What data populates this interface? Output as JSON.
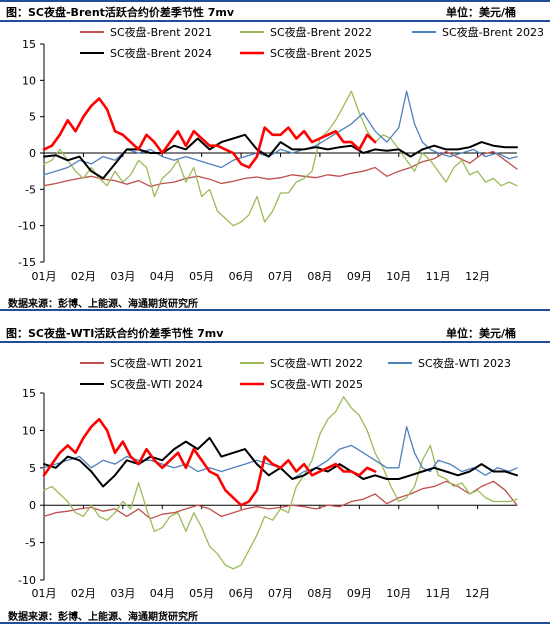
{
  "chart_data": [
    {
      "type": "line",
      "title": "图：SC夜盘-Brent活跃合约价差季节性 7mv",
      "unit": "单位：美元/桶",
      "source": "数据来源：彭博、上能源、海通期货研究所",
      "xlabel": "",
      "ylabel": "",
      "x_ticks": [
        "01月",
        "02月",
        "03月",
        "04月",
        "05月",
        "06月",
        "07月",
        "08月",
        "09月",
        "10月",
        "11月",
        "12月"
      ],
      "ylim": [
        -15,
        15
      ],
      "y_ticks": [
        15,
        10,
        5,
        0,
        -5,
        -10,
        -15
      ],
      "grid": false,
      "legend_position": "top",
      "series": [
        {
          "name": "SC夜盘-Brent 2021",
          "color": "#c0504d",
          "width": 1.3,
          "x": [
            1,
            1.3,
            1.6,
            1.9,
            2.2,
            2.5,
            2.8,
            3.1,
            3.4,
            3.7,
            4.0,
            4.3,
            4.6,
            4.9,
            5.2,
            5.5,
            5.8,
            6.1,
            6.4,
            6.7,
            7.0,
            7.3,
            7.6,
            7.9,
            8.2,
            8.5,
            8.8,
            9.1,
            9.4,
            9.7,
            10.0,
            10.3,
            10.6,
            10.9,
            11.2,
            11.5,
            11.8,
            12.1,
            12.4,
            12.7,
            13.0
          ],
          "values": [
            -4.5,
            -4.2,
            -3.8,
            -3.5,
            -3.2,
            -3.6,
            -3.8,
            -4.3,
            -3.8,
            -4.6,
            -4.2,
            -4.0,
            -3.5,
            -3.2,
            -3.6,
            -4.2,
            -3.9,
            -3.5,
            -3.3,
            -3.6,
            -3.4,
            -3.0,
            -3.2,
            -3.4,
            -3.0,
            -3.2,
            -2.8,
            -2.5,
            -2.0,
            -3.2,
            -2.5,
            -2.0,
            -1.2,
            -0.8,
            0.2,
            -0.6,
            -1.4,
            -0.2,
            0.2,
            -1.0,
            -2.2
          ]
        },
        {
          "name": "SC夜盘-Brent 2022",
          "color": "#9bbb59",
          "width": 1.3,
          "x": [
            1,
            1.2,
            1.4,
            1.6,
            1.8,
            2.0,
            2.2,
            2.4,
            2.6,
            2.8,
            3.0,
            3.2,
            3.4,
            3.6,
            3.8,
            4.0,
            4.2,
            4.4,
            4.6,
            4.8,
            5.0,
            5.2,
            5.4,
            5.6,
            5.8,
            6.0,
            6.2,
            6.4,
            6.6,
            6.8,
            7.0,
            7.2,
            7.4,
            7.6,
            7.8,
            8.0,
            8.2,
            8.4,
            8.6,
            8.8,
            9.0,
            9.2,
            9.4,
            9.6,
            9.8,
            10.0,
            10.2,
            10.4,
            10.6,
            10.8,
            11.0,
            11.2,
            11.4,
            11.6,
            11.8,
            12.0,
            12.2,
            12.4,
            12.6,
            12.8,
            13.0
          ],
          "values": [
            -1.5,
            -1.0,
            0.5,
            -1.0,
            -2.5,
            -3.5,
            -2.0,
            -3.5,
            -4.5,
            -2.5,
            -4.0,
            -3.0,
            -1.0,
            -2.0,
            -6.0,
            -3.5,
            -2.5,
            -1.0,
            -4.0,
            -2.0,
            -6.0,
            -5.0,
            -8.0,
            -9.0,
            -10.0,
            -9.5,
            -8.5,
            -6.0,
            -9.5,
            -8.0,
            -5.5,
            -5.5,
            -4.0,
            -3.5,
            -2.5,
            2.0,
            3.0,
            4.5,
            6.5,
            8.5,
            5.5,
            3.0,
            1.5,
            2.5,
            2.0,
            0.5,
            -1.0,
            -2.5,
            0.0,
            -1.0,
            -2.5,
            -4.0,
            -2.0,
            -1.0,
            -3.0,
            -2.5,
            -4.0,
            -3.5,
            -4.5,
            -4.0,
            -4.5
          ]
        },
        {
          "name": "SC夜盘-Brent 2023",
          "color": "#4f81bd",
          "width": 1.3,
          "x": [
            1,
            1.3,
            1.6,
            1.9,
            2.2,
            2.5,
            2.8,
            3.1,
            3.4,
            3.7,
            4.0,
            4.3,
            4.6,
            4.9,
            5.2,
            5.5,
            5.8,
            6.1,
            6.4,
            6.7,
            7.0,
            7.3,
            7.6,
            7.9,
            8.2,
            8.5,
            8.8,
            9.1,
            9.4,
            9.7,
            10.0,
            10.2,
            10.4,
            10.6,
            10.8,
            11.0,
            11.3,
            11.6,
            11.9,
            12.2,
            12.5,
            12.8,
            13.0
          ],
          "values": [
            -3.0,
            -2.5,
            -2.0,
            -1.0,
            -1.5,
            -0.5,
            -1.0,
            0.5,
            0.0,
            0.5,
            -0.5,
            -1.0,
            -0.5,
            -1.0,
            -1.5,
            -2.0,
            -1.0,
            -0.5,
            0.0,
            -0.5,
            0.5,
            0.0,
            0.5,
            1.0,
            2.0,
            3.0,
            4.0,
            5.5,
            3.0,
            1.5,
            3.5,
            8.5,
            4.0,
            1.5,
            0.5,
            0.0,
            -0.5,
            0.0,
            0.5,
            -0.5,
            0.0,
            -0.8,
            -0.5
          ]
        },
        {
          "name": "SC夜盘-Brent 2024",
          "color": "#000000",
          "width": 2.0,
          "x": [
            1,
            1.3,
            1.6,
            1.9,
            2.2,
            2.5,
            2.8,
            3.1,
            3.4,
            3.7,
            4.0,
            4.3,
            4.6,
            4.9,
            5.2,
            5.5,
            5.8,
            6.1,
            6.4,
            6.7,
            7.0,
            7.3,
            7.6,
            7.9,
            8.2,
            8.5,
            8.8,
            9.1,
            9.4,
            9.7,
            10.0,
            10.3,
            10.6,
            10.9,
            11.2,
            11.5,
            11.8,
            12.1,
            12.4,
            12.7,
            13.0
          ],
          "values": [
            -0.5,
            -0.3,
            -1.0,
            -0.5,
            -2.5,
            -3.5,
            -1.5,
            0.5,
            0.5,
            0.0,
            0.0,
            1.0,
            0.5,
            2.0,
            0.5,
            1.5,
            2.0,
            2.5,
            0.5,
            -0.5,
            1.5,
            0.5,
            0.5,
            0.8,
            0.5,
            0.8,
            1.0,
            0.0,
            0.5,
            0.3,
            0.5,
            -0.5,
            0.5,
            1.0,
            0.5,
            0.5,
            0.8,
            1.5,
            1.0,
            0.8,
            0.8
          ]
        },
        {
          "name": "SC夜盘-Brent 2025",
          "color": "#ff0000",
          "width": 2.6,
          "x": [
            1,
            1.2,
            1.4,
            1.6,
            1.8,
            2.0,
            2.2,
            2.4,
            2.6,
            2.8,
            3.0,
            3.2,
            3.4,
            3.6,
            3.8,
            4.0,
            4.2,
            4.4,
            4.6,
            4.8,
            5.0,
            5.2,
            5.4,
            5.6,
            5.8,
            6.0,
            6.2,
            6.4,
            6.6,
            6.8,
            7.0,
            7.2,
            7.4,
            7.6,
            7.8,
            8.0,
            8.2,
            8.4,
            8.6,
            8.8,
            9.0,
            9.2,
            9.4
          ],
          "values": [
            0.5,
            1.0,
            2.5,
            4.5,
            3.0,
            5.0,
            6.5,
            7.5,
            6.0,
            3.0,
            2.5,
            1.5,
            0.5,
            2.5,
            1.5,
            0.0,
            1.5,
            3.0,
            1.0,
            3.0,
            2.0,
            1.0,
            1.0,
            0.5,
            0.0,
            -1.5,
            -2.0,
            -0.5,
            3.5,
            2.5,
            2.5,
            3.5,
            2.0,
            3.0,
            1.5,
            2.0,
            2.5,
            3.0,
            1.5,
            1.5,
            0.5,
            2.5,
            1.5
          ]
        }
      ]
    },
    {
      "type": "line",
      "title": "图：SC夜盘-WTI活跃合约价差季节性 7mv",
      "unit": "单位：美元/桶",
      "source": "数据来源：彭博、上能源、海通期货研究所",
      "xlabel": "",
      "ylabel": "",
      "x_ticks": [
        "01月",
        "02月",
        "03月",
        "04月",
        "05月",
        "06月",
        "07月",
        "08月",
        "09月",
        "10月",
        "11月",
        "12月"
      ],
      "ylim": [
        -10,
        15
      ],
      "y_ticks": [
        15,
        10,
        5,
        0,
        -5,
        -10
      ],
      "grid": false,
      "legend_position": "top",
      "series": [
        {
          "name": "SC夜盘-WTI 2021",
          "color": "#c0504d",
          "width": 1.3,
          "x": [
            1,
            1.3,
            1.6,
            1.9,
            2.2,
            2.5,
            2.8,
            3.1,
            3.4,
            3.7,
            4.0,
            4.3,
            4.6,
            4.9,
            5.2,
            5.5,
            5.8,
            6.1,
            6.4,
            6.7,
            7.0,
            7.3,
            7.6,
            7.9,
            8.2,
            8.5,
            8.8,
            9.1,
            9.4,
            9.7,
            10.0,
            10.3,
            10.6,
            10.9,
            11.2,
            11.5,
            11.8,
            12.1,
            12.4,
            12.7,
            13.0
          ],
          "values": [
            -1.5,
            -1.0,
            -0.8,
            -0.5,
            -0.3,
            -0.8,
            -0.5,
            -1.5,
            -0.5,
            -1.8,
            -1.2,
            -1.0,
            -0.5,
            0.0,
            -0.5,
            -1.5,
            -1.0,
            -0.5,
            -0.2,
            -0.5,
            -0.3,
            0.0,
            -0.2,
            -0.5,
            0.0,
            -0.2,
            0.5,
            0.8,
            1.5,
            0.2,
            1.0,
            1.5,
            2.2,
            2.5,
            3.2,
            2.5,
            1.5,
            2.5,
            3.2,
            2.0,
            0.0
          ]
        },
        {
          "name": "SC夜盘-WTI 2022",
          "color": "#9bbb59",
          "width": 1.3,
          "x": [
            1,
            1.2,
            1.4,
            1.6,
            1.8,
            2.0,
            2.2,
            2.4,
            2.6,
            2.8,
            3.0,
            3.2,
            3.4,
            3.6,
            3.8,
            4.0,
            4.2,
            4.4,
            4.6,
            4.8,
            5.0,
            5.2,
            5.4,
            5.6,
            5.8,
            6.0,
            6.2,
            6.4,
            6.6,
            6.8,
            7.0,
            7.2,
            7.4,
            7.6,
            7.8,
            8.0,
            8.2,
            8.4,
            8.6,
            8.8,
            9.0,
            9.2,
            9.4,
            9.6,
            9.8,
            10.0,
            10.2,
            10.4,
            10.6,
            10.8,
            11.0,
            11.2,
            11.4,
            11.6,
            11.8,
            12.0,
            12.2,
            12.4,
            12.6,
            12.8,
            13.0
          ],
          "values": [
            2.0,
            2.5,
            1.5,
            0.5,
            -1.0,
            -1.5,
            0.0,
            -1.5,
            -2.0,
            -1.0,
            0.5,
            -0.5,
            3.0,
            -0.5,
            -3.5,
            -3.0,
            -1.5,
            -1.0,
            -3.5,
            -1.0,
            -3.0,
            -5.5,
            -6.5,
            -8.0,
            -8.5,
            -8.0,
            -6.0,
            -4.0,
            -1.5,
            -2.0,
            -0.5,
            -1.0,
            2.5,
            4.0,
            6.0,
            9.5,
            11.5,
            12.5,
            14.5,
            13.0,
            12.0,
            10.0,
            7.0,
            5.0,
            2.5,
            0.5,
            1.0,
            2.5,
            6.0,
            8.0,
            4.0,
            3.5,
            2.5,
            3.0,
            1.5,
            2.0,
            1.0,
            0.5,
            0.5,
            0.5,
            0.8
          ]
        },
        {
          "name": "SC夜盘-WTI 2023",
          "color": "#4f81bd",
          "width": 1.3,
          "x": [
            1,
            1.3,
            1.6,
            1.9,
            2.2,
            2.5,
            2.8,
            3.1,
            3.4,
            3.7,
            4.0,
            4.3,
            4.6,
            4.9,
            5.2,
            5.5,
            5.8,
            6.1,
            6.4,
            6.7,
            7.0,
            7.3,
            7.6,
            7.9,
            8.2,
            8.5,
            8.8,
            9.1,
            9.4,
            9.7,
            10.0,
            10.2,
            10.4,
            10.6,
            10.8,
            11.0,
            11.3,
            11.6,
            11.9,
            12.2,
            12.5,
            12.8,
            13.0
          ],
          "values": [
            5.0,
            5.5,
            6.0,
            6.5,
            5.0,
            6.0,
            5.5,
            6.5,
            6.0,
            6.0,
            5.5,
            5.0,
            5.5,
            4.5,
            5.0,
            4.5,
            5.0,
            5.5,
            6.0,
            5.5,
            5.0,
            3.5,
            4.5,
            5.0,
            6.0,
            7.5,
            8.0,
            7.0,
            6.0,
            5.0,
            5.0,
            10.5,
            7.0,
            5.0,
            4.5,
            6.0,
            5.5,
            4.5,
            5.0,
            4.0,
            5.0,
            4.5,
            5.0
          ]
        },
        {
          "name": "SC夜盘-WTI 2024",
          "color": "#000000",
          "width": 2.0,
          "x": [
            1,
            1.3,
            1.6,
            1.9,
            2.2,
            2.5,
            2.8,
            3.1,
            3.4,
            3.7,
            4.0,
            4.3,
            4.6,
            4.9,
            5.2,
            5.5,
            5.8,
            6.1,
            6.4,
            6.7,
            7.0,
            7.3,
            7.6,
            7.9,
            8.2,
            8.5,
            8.8,
            9.1,
            9.4,
            9.7,
            10.0,
            10.3,
            10.6,
            10.9,
            11.2,
            11.5,
            11.8,
            12.1,
            12.4,
            12.7,
            13.0
          ],
          "values": [
            5.5,
            5.0,
            6.5,
            6.0,
            4.5,
            2.5,
            4.0,
            6.0,
            5.5,
            6.5,
            6.0,
            7.5,
            8.5,
            7.5,
            9.0,
            6.5,
            7.0,
            7.5,
            5.5,
            4.0,
            5.0,
            3.5,
            4.0,
            5.0,
            4.5,
            5.5,
            4.5,
            3.5,
            4.0,
            3.5,
            3.5,
            4.0,
            4.5,
            5.0,
            4.5,
            4.0,
            4.5,
            5.5,
            4.5,
            4.5,
            4.0
          ]
        },
        {
          "name": "SC夜盘-WTI 2025",
          "color": "#ff0000",
          "width": 2.6,
          "x": [
            1,
            1.2,
            1.4,
            1.6,
            1.8,
            2.0,
            2.2,
            2.4,
            2.6,
            2.8,
            3.0,
            3.2,
            3.4,
            3.6,
            3.8,
            4.0,
            4.2,
            4.4,
            4.6,
            4.8,
            5.0,
            5.2,
            5.4,
            5.6,
            5.8,
            6.0,
            6.2,
            6.4,
            6.6,
            6.8,
            7.0,
            7.2,
            7.4,
            7.6,
            7.8,
            8.0,
            8.2,
            8.4,
            8.6,
            8.8,
            9.0,
            9.2,
            9.4
          ],
          "values": [
            4.0,
            5.5,
            7.0,
            8.0,
            7.0,
            9.0,
            10.5,
            11.5,
            10.0,
            7.0,
            8.5,
            6.5,
            5.5,
            7.5,
            6.0,
            5.0,
            6.0,
            7.0,
            5.0,
            7.5,
            6.0,
            4.5,
            4.0,
            2.0,
            1.0,
            0.0,
            0.5,
            2.0,
            6.5,
            5.5,
            5.0,
            6.0,
            4.5,
            5.5,
            4.0,
            4.5,
            5.0,
            5.5,
            4.5,
            4.5,
            4.0,
            5.0,
            4.5
          ]
        }
      ]
    }
  ]
}
